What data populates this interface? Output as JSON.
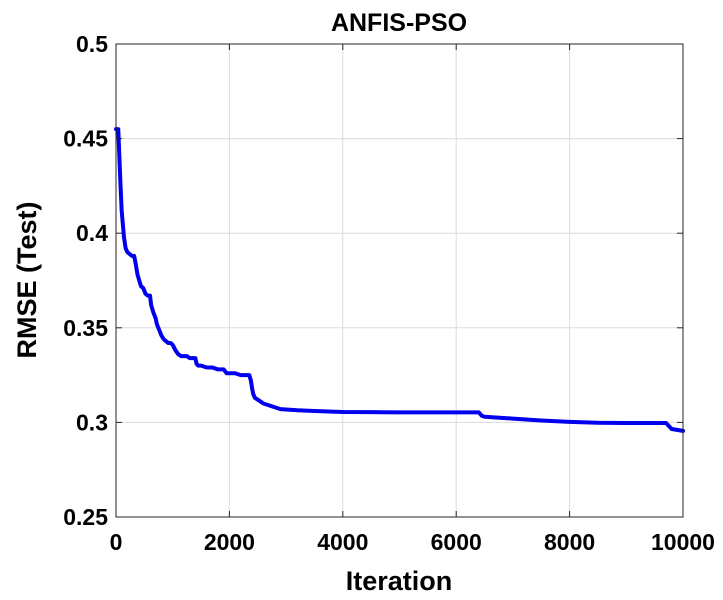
{
  "chart_data": {
    "type": "line",
    "title": "ANFIS-PSO",
    "xlabel": "Iteration",
    "ylabel": "RMSE (Test)",
    "xlim": [
      0,
      10000
    ],
    "ylim": [
      0.25,
      0.5
    ],
    "xticks": [
      0,
      2000,
      4000,
      6000,
      8000,
      10000
    ],
    "xtick_labels": [
      "0",
      "2000",
      "4000",
      "6000",
      "8000",
      "10000"
    ],
    "yticks": [
      0.25,
      0.3,
      0.35,
      0.4,
      0.45,
      0.5
    ],
    "ytick_labels": [
      "0.25",
      "0.3",
      "0.35",
      "0.4",
      "0.45",
      "0.5"
    ],
    "grid": true,
    "series": [
      {
        "color": "#0000ee",
        "x": [
          0,
          40,
          60,
          80,
          100,
          120,
          140,
          170,
          200,
          240,
          280,
          320,
          340,
          380,
          420,
          440,
          480,
          520,
          560,
          600,
          620,
          660,
          700,
          720,
          760,
          800,
          840,
          880,
          920,
          960,
          1000,
          1050,
          1100,
          1150,
          1200,
          1250,
          1300,
          1350,
          1400,
          1420,
          1450,
          1500,
          1600,
          1700,
          1800,
          1900,
          1950,
          2000,
          2100,
          2200,
          2300,
          2350,
          2380,
          2400,
          2420,
          2450,
          2500,
          2550,
          2600,
          2700,
          2800,
          2900,
          3000,
          3200,
          3500,
          4000,
          4500,
          5000,
          5500,
          6000,
          6300,
          6400,
          6450,
          6500,
          7000,
          7500,
          8000,
          8500,
          9000,
          9500,
          9600,
          9700,
          9800,
          10000
        ],
        "values": [
          0.455,
          0.455,
          0.44,
          0.425,
          0.412,
          0.405,
          0.398,
          0.392,
          0.39,
          0.389,
          0.388,
          0.388,
          0.385,
          0.378,
          0.374,
          0.372,
          0.371,
          0.368,
          0.367,
          0.367,
          0.362,
          0.358,
          0.355,
          0.352,
          0.349,
          0.346,
          0.344,
          0.343,
          0.342,
          0.342,
          0.341,
          0.338,
          0.336,
          0.335,
          0.335,
          0.335,
          0.334,
          0.334,
          0.334,
          0.331,
          0.33,
          0.33,
          0.329,
          0.329,
          0.328,
          0.328,
          0.326,
          0.326,
          0.326,
          0.325,
          0.325,
          0.325,
          0.322,
          0.318,
          0.315,
          0.313,
          0.312,
          0.311,
          0.31,
          0.309,
          0.308,
          0.307,
          0.3068,
          0.3064,
          0.306,
          0.3055,
          0.3054,
          0.3053,
          0.3053,
          0.3053,
          0.3053,
          0.3053,
          0.3035,
          0.303,
          0.302,
          0.301,
          0.3003,
          0.2998,
          0.2997,
          0.2997,
          0.2997,
          0.2997,
          0.2965,
          0.2955
        ]
      }
    ]
  }
}
